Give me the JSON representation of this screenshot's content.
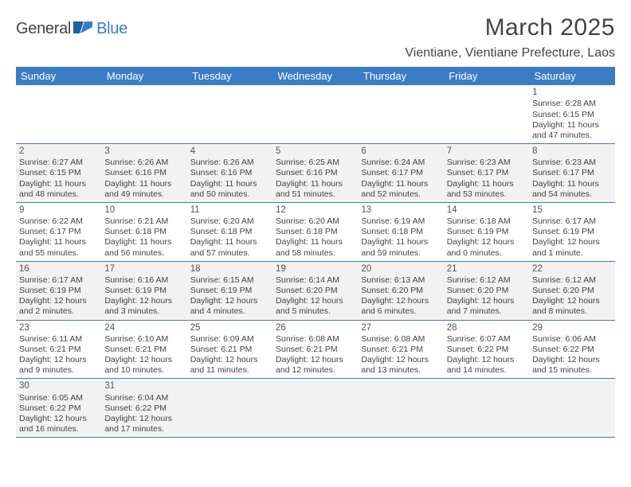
{
  "logo": {
    "word1": "General",
    "word2": "Blue"
  },
  "title": "March 2025",
  "location": "Vientiane, Vientiane Prefecture, Laos",
  "colors": {
    "header_bg": "#3b7dc4",
    "header_fg": "#ffffff",
    "row_even_bg": "#ffffff",
    "row_odd_bg": "#f2f2f2",
    "border": "#3b7dc4",
    "text": "#444444"
  },
  "day_headers": [
    "Sunday",
    "Monday",
    "Tuesday",
    "Wednesday",
    "Thursday",
    "Friday",
    "Saturday"
  ],
  "weeks": [
    [
      null,
      null,
      null,
      null,
      null,
      null,
      {
        "n": "1",
        "sr": "Sunrise: 6:28 AM",
        "ss": "Sunset: 6:15 PM",
        "dl1": "Daylight: 11 hours",
        "dl2": "and 47 minutes."
      }
    ],
    [
      {
        "n": "2",
        "sr": "Sunrise: 6:27 AM",
        "ss": "Sunset: 6:15 PM",
        "dl1": "Daylight: 11 hours",
        "dl2": "and 48 minutes."
      },
      {
        "n": "3",
        "sr": "Sunrise: 6:26 AM",
        "ss": "Sunset: 6:16 PM",
        "dl1": "Daylight: 11 hours",
        "dl2": "and 49 minutes."
      },
      {
        "n": "4",
        "sr": "Sunrise: 6:26 AM",
        "ss": "Sunset: 6:16 PM",
        "dl1": "Daylight: 11 hours",
        "dl2": "and 50 minutes."
      },
      {
        "n": "5",
        "sr": "Sunrise: 6:25 AM",
        "ss": "Sunset: 6:16 PM",
        "dl1": "Daylight: 11 hours",
        "dl2": "and 51 minutes."
      },
      {
        "n": "6",
        "sr": "Sunrise: 6:24 AM",
        "ss": "Sunset: 6:17 PM",
        "dl1": "Daylight: 11 hours",
        "dl2": "and 52 minutes."
      },
      {
        "n": "7",
        "sr": "Sunrise: 6:23 AM",
        "ss": "Sunset: 6:17 PM",
        "dl1": "Daylight: 11 hours",
        "dl2": "and 53 minutes."
      },
      {
        "n": "8",
        "sr": "Sunrise: 6:23 AM",
        "ss": "Sunset: 6:17 PM",
        "dl1": "Daylight: 11 hours",
        "dl2": "and 54 minutes."
      }
    ],
    [
      {
        "n": "9",
        "sr": "Sunrise: 6:22 AM",
        "ss": "Sunset: 6:17 PM",
        "dl1": "Daylight: 11 hours",
        "dl2": "and 55 minutes."
      },
      {
        "n": "10",
        "sr": "Sunrise: 6:21 AM",
        "ss": "Sunset: 6:18 PM",
        "dl1": "Daylight: 11 hours",
        "dl2": "and 56 minutes."
      },
      {
        "n": "11",
        "sr": "Sunrise: 6:20 AM",
        "ss": "Sunset: 6:18 PM",
        "dl1": "Daylight: 11 hours",
        "dl2": "and 57 minutes."
      },
      {
        "n": "12",
        "sr": "Sunrise: 6:20 AM",
        "ss": "Sunset: 6:18 PM",
        "dl1": "Daylight: 11 hours",
        "dl2": "and 58 minutes."
      },
      {
        "n": "13",
        "sr": "Sunrise: 6:19 AM",
        "ss": "Sunset: 6:18 PM",
        "dl1": "Daylight: 11 hours",
        "dl2": "and 59 minutes."
      },
      {
        "n": "14",
        "sr": "Sunrise: 6:18 AM",
        "ss": "Sunset: 6:19 PM",
        "dl1": "Daylight: 12 hours",
        "dl2": "and 0 minutes."
      },
      {
        "n": "15",
        "sr": "Sunrise: 6:17 AM",
        "ss": "Sunset: 6:19 PM",
        "dl1": "Daylight: 12 hours",
        "dl2": "and 1 minute."
      }
    ],
    [
      {
        "n": "16",
        "sr": "Sunrise: 6:17 AM",
        "ss": "Sunset: 6:19 PM",
        "dl1": "Daylight: 12 hours",
        "dl2": "and 2 minutes."
      },
      {
        "n": "17",
        "sr": "Sunrise: 6:16 AM",
        "ss": "Sunset: 6:19 PM",
        "dl1": "Daylight: 12 hours",
        "dl2": "and 3 minutes."
      },
      {
        "n": "18",
        "sr": "Sunrise: 6:15 AM",
        "ss": "Sunset: 6:19 PM",
        "dl1": "Daylight: 12 hours",
        "dl2": "and 4 minutes."
      },
      {
        "n": "19",
        "sr": "Sunrise: 6:14 AM",
        "ss": "Sunset: 6:20 PM",
        "dl1": "Daylight: 12 hours",
        "dl2": "and 5 minutes."
      },
      {
        "n": "20",
        "sr": "Sunrise: 6:13 AM",
        "ss": "Sunset: 6:20 PM",
        "dl1": "Daylight: 12 hours",
        "dl2": "and 6 minutes."
      },
      {
        "n": "21",
        "sr": "Sunrise: 6:12 AM",
        "ss": "Sunset: 6:20 PM",
        "dl1": "Daylight: 12 hours",
        "dl2": "and 7 minutes."
      },
      {
        "n": "22",
        "sr": "Sunrise: 6:12 AM",
        "ss": "Sunset: 6:20 PM",
        "dl1": "Daylight: 12 hours",
        "dl2": "and 8 minutes."
      }
    ],
    [
      {
        "n": "23",
        "sr": "Sunrise: 6:11 AM",
        "ss": "Sunset: 6:21 PM",
        "dl1": "Daylight: 12 hours",
        "dl2": "and 9 minutes."
      },
      {
        "n": "24",
        "sr": "Sunrise: 6:10 AM",
        "ss": "Sunset: 6:21 PM",
        "dl1": "Daylight: 12 hours",
        "dl2": "and 10 minutes."
      },
      {
        "n": "25",
        "sr": "Sunrise: 6:09 AM",
        "ss": "Sunset: 6:21 PM",
        "dl1": "Daylight: 12 hours",
        "dl2": "and 11 minutes."
      },
      {
        "n": "26",
        "sr": "Sunrise: 6:08 AM",
        "ss": "Sunset: 6:21 PM",
        "dl1": "Daylight: 12 hours",
        "dl2": "and 12 minutes."
      },
      {
        "n": "27",
        "sr": "Sunrise: 6:08 AM",
        "ss": "Sunset: 6:21 PM",
        "dl1": "Daylight: 12 hours",
        "dl2": "and 13 minutes."
      },
      {
        "n": "28",
        "sr": "Sunrise: 6:07 AM",
        "ss": "Sunset: 6:22 PM",
        "dl1": "Daylight: 12 hours",
        "dl2": "and 14 minutes."
      },
      {
        "n": "29",
        "sr": "Sunrise: 6:06 AM",
        "ss": "Sunset: 6:22 PM",
        "dl1": "Daylight: 12 hours",
        "dl2": "and 15 minutes."
      }
    ],
    [
      {
        "n": "30",
        "sr": "Sunrise: 6:05 AM",
        "ss": "Sunset: 6:22 PM",
        "dl1": "Daylight: 12 hours",
        "dl2": "and 16 minutes."
      },
      {
        "n": "31",
        "sr": "Sunrise: 6:04 AM",
        "ss": "Sunset: 6:22 PM",
        "dl1": "Daylight: 12 hours",
        "dl2": "and 17 minutes."
      },
      null,
      null,
      null,
      null,
      null
    ]
  ]
}
